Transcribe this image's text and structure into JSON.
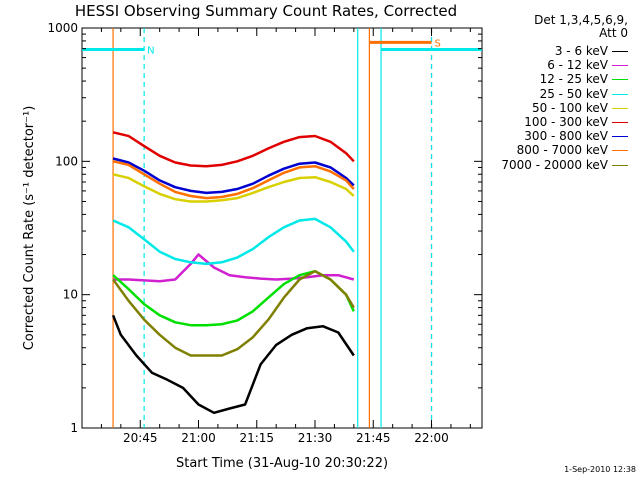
{
  "chart_data": {
    "type": "line",
    "title": "HESSI Observing Summary Count Rates, Corrected",
    "xlabel": "Start Time (31-Aug-10 20:30:22)",
    "ylabel": "Corrected Count Rate (s⁻¹ detector⁻¹)",
    "yscale": "log",
    "ylim": [
      1,
      1000
    ],
    "xlim_minutes_from_2030": [
      0,
      103
    ],
    "x_tick_labels": [
      "20:45",
      "21:00",
      "21:15",
      "21:30",
      "21:45",
      "22:00"
    ],
    "x_ticks_minutes_from_2030": [
      15,
      30,
      45,
      60,
      75,
      90
    ],
    "y_tick_labels": [
      "1",
      "10",
      "100",
      "1000"
    ],
    "y_ticks": [
      1,
      10,
      100,
      1000
    ],
    "legend": {
      "title": [
        "Det 1,3,4,5,6,9,",
        "Att 0"
      ],
      "placement": "outside-right"
    },
    "series": [
      {
        "name": "3 - 6 keV",
        "color": "#000000",
        "x": [
          8,
          10,
          14,
          18,
          22,
          26,
          30,
          34,
          38,
          42,
          46,
          50,
          54,
          58,
          62,
          66,
          70
        ],
        "y": [
          7.0,
          5.0,
          3.5,
          2.6,
          2.3,
          2.0,
          1.5,
          1.3,
          1.4,
          1.5,
          3.0,
          4.2,
          5.0,
          5.6,
          5.8,
          5.2,
          3.5
        ]
      },
      {
        "name": "6 - 12 keV",
        "color": "#d020d0",
        "x": [
          8,
          12,
          16,
          20,
          24,
          28,
          30,
          34,
          38,
          42,
          46,
          50,
          54,
          58,
          62,
          66,
          70
        ],
        "y": [
          13,
          13,
          12.8,
          12.6,
          13,
          17,
          20,
          16,
          14,
          13.5,
          13.2,
          13,
          13.2,
          13.5,
          14,
          14,
          13
        ]
      },
      {
        "name": "12 - 25 keV",
        "color": "#00e000",
        "x": [
          8,
          12,
          16,
          20,
          24,
          28,
          32,
          36,
          40,
          44,
          48,
          52,
          56,
          60,
          64,
          68,
          70
        ],
        "y": [
          14,
          11,
          8.5,
          7.0,
          6.2,
          5.9,
          5.9,
          6.0,
          6.4,
          7.5,
          9.5,
          12,
          14,
          15,
          13,
          10,
          7.5
        ]
      },
      {
        "name": "25 - 50 keV",
        "color": "#00e8e8",
        "x": [
          8,
          12,
          16,
          20,
          24,
          28,
          32,
          36,
          40,
          44,
          48,
          52,
          56,
          60,
          64,
          68,
          70
        ],
        "y": [
          36,
          32,
          26,
          21,
          18.5,
          17.5,
          17,
          17.5,
          19,
          22,
          27,
          32,
          36,
          37,
          32,
          25,
          21
        ]
      },
      {
        "name": "50 - 100 keV",
        "color": "#d8d000",
        "x": [
          8,
          12,
          16,
          20,
          24,
          28,
          32,
          36,
          40,
          44,
          48,
          52,
          56,
          60,
          64,
          68,
          70
        ],
        "y": [
          80,
          75,
          65,
          57,
          52,
          50,
          50,
          51,
          53,
          58,
          64,
          70,
          75,
          76,
          70,
          62,
          55
        ]
      },
      {
        "name": "100 - 300 keV",
        "color": "#e00000",
        "x": [
          8,
          12,
          16,
          20,
          24,
          28,
          32,
          36,
          40,
          44,
          48,
          52,
          56,
          60,
          64,
          68,
          70
        ],
        "y": [
          165,
          155,
          130,
          110,
          98,
          93,
          92,
          94,
          100,
          110,
          125,
          140,
          152,
          155,
          140,
          115,
          100
        ]
      },
      {
        "name": "300 - 800 keV",
        "color": "#0000d0",
        "x": [
          8,
          12,
          16,
          20,
          24,
          28,
          32,
          36,
          40,
          44,
          48,
          52,
          56,
          60,
          64,
          68,
          70
        ],
        "y": [
          105,
          98,
          85,
          72,
          64,
          60,
          58,
          59,
          62,
          68,
          78,
          88,
          96,
          98,
          90,
          75,
          66
        ]
      },
      {
        "name": "800 - 7000 keV",
        "color": "#ff7000",
        "x": [
          8,
          12,
          16,
          20,
          24,
          28,
          32,
          36,
          40,
          44,
          48,
          52,
          56,
          60,
          64,
          68,
          70
        ],
        "y": [
          100,
          94,
          80,
          68,
          59,
          55,
          53,
          54,
          57,
          63,
          72,
          82,
          90,
          92,
          84,
          72,
          62
        ]
      },
      {
        "name": "7000 - 20000 keV",
        "color": "#808000",
        "x": [
          8,
          12,
          16,
          20,
          24,
          28,
          32,
          36,
          40,
          44,
          48,
          52,
          56,
          60,
          64,
          68,
          70
        ],
        "y": [
          13,
          9,
          6.5,
          5.0,
          4.0,
          3.5,
          3.5,
          3.5,
          3.9,
          4.8,
          6.5,
          9.5,
          13,
          15,
          13,
          10,
          8
        ]
      }
    ],
    "attenuator_states": [
      {
        "x_start": 0,
        "x_end": 16,
        "y": 690,
        "color": "#00e8e8",
        "label": "N"
      },
      {
        "x_start": 74,
        "x_end": 90,
        "y": 780,
        "color": "#ff7000",
        "label": "S"
      },
      {
        "x_start": 77,
        "x_end": 103,
        "y": 690,
        "color": "#00e8e8",
        "label": ""
      }
    ],
    "vertical_markers": [
      {
        "x": 16,
        "color": "#00e8e8",
        "style": "dashed"
      },
      {
        "x": 71,
        "color": "#00e8e8",
        "style": "solid"
      },
      {
        "x": 74,
        "color": "#ff7000",
        "style": "solid"
      },
      {
        "x": 77,
        "color": "#00e8e8",
        "style": "solid"
      },
      {
        "x": 90,
        "color": "#ff7000",
        "style": "dashed"
      },
      {
        "x": 90,
        "color": "#00e8e8",
        "style": "dashed"
      },
      {
        "x": 8,
        "color": "#ff7000",
        "style": "solid"
      }
    ]
  },
  "footer": {
    "timestamp": "1-Sep-2010 12:38"
  }
}
